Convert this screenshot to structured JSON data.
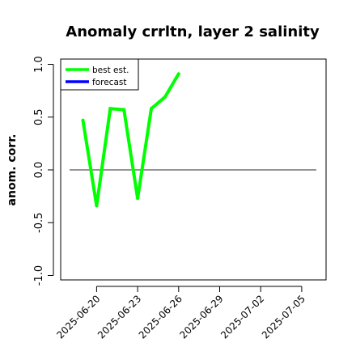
{
  "chart_data": {
    "type": "line",
    "title": "Anomaly crrltn, layer 2 salinity",
    "ylabel": "anom. corr.",
    "xlabel": "",
    "ylim": [
      -1.0,
      1.0
    ],
    "y_ticks": [
      "-1.0",
      "-0.5",
      "0.0",
      "0.5",
      "1.0"
    ],
    "x_start": "2025-06-19",
    "x_end": "2025-07-06",
    "x_ticks": [
      {
        "label": "2025-06-20",
        "color": "#000000"
      },
      {
        "label": "2025-06-23",
        "color": "#000000"
      },
      {
        "label": "2025-06-26",
        "color": "#228B22"
      },
      {
        "label": "2025-06-29",
        "color": "#000000"
      },
      {
        "label": "2025-07-02",
        "color": "#000000"
      },
      {
        "label": "2025-07-05",
        "color": "#000000"
      }
    ],
    "reference_line": {
      "y": 0.0,
      "color": "#555555"
    },
    "series": [
      {
        "name": "best est.",
        "color": "#00ff00",
        "x": [
          "2025-06-19",
          "2025-06-20",
          "2025-06-21",
          "2025-06-22",
          "2025-06-23",
          "2025-06-24",
          "2025-06-25",
          "2025-06-26"
        ],
        "values": [
          0.47,
          -0.34,
          0.58,
          0.57,
          -0.27,
          0.58,
          0.69,
          0.91
        ]
      },
      {
        "name": "forecast",
        "color": "#0000ff",
        "x": [],
        "values": []
      }
    ],
    "legend_position": "top-left",
    "grid": false
  }
}
